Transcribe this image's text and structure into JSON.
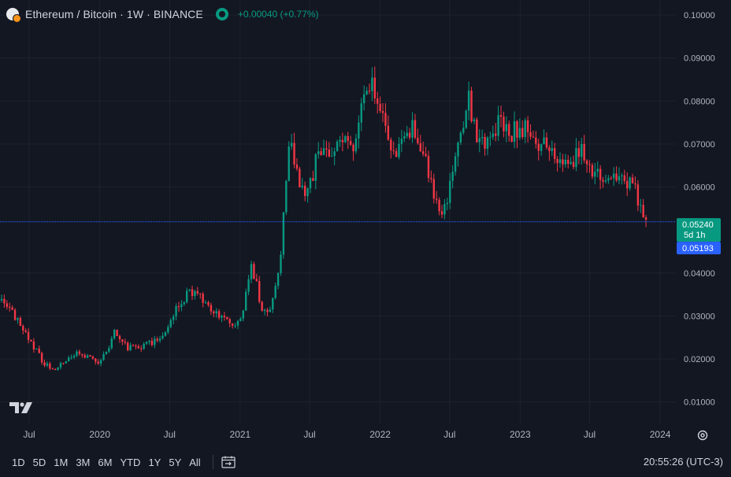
{
  "header": {
    "title": "Ethereum / Bitcoin · 1W · BINANCE",
    "change": "+0.00040 (+0.77%)"
  },
  "icons": {
    "symbol": "eth-btc-symbol-icon",
    "visibility": "eye-icon",
    "logo": "tradingview-logo",
    "settings": "gear-icon",
    "goto_date": "calendar-goto-icon"
  },
  "colors": {
    "background": "#131722",
    "up": "#089981",
    "down": "#f23645",
    "priceline": "#2962ff",
    "grid": "#1e222d",
    "text": "#d1d4dc"
  },
  "ranges": [
    "1D",
    "5D",
    "1M",
    "3M",
    "6M",
    "YTD",
    "1Y",
    "5Y",
    "All"
  ],
  "clock": "20:55:26 (UTC-3)",
  "chart_data": {
    "type": "candlestick",
    "interval": "1W",
    "y_ticks": [
      "0.10000",
      "0.09000",
      "0.08000",
      "0.07000",
      "0.06000",
      "0.04000",
      "0.03000",
      "0.02000",
      "0.01000"
    ],
    "x_ticks": [
      "Jul",
      "2020",
      "Jul",
      "2021",
      "Jul",
      "2022",
      "Jul",
      "2023",
      "Jul",
      "2024"
    ],
    "ylim": [
      0.005,
      0.1035
    ],
    "last_price": "0.05240",
    "countdown": "5d 1h",
    "line_price": "0.05193",
    "last_value": 0.0524,
    "line_value": 0.05193,
    "anchors": [
      [
        "2019-04-20",
        0.034
      ],
      [
        "2019-05-01",
        0.0325
      ],
      [
        "2019-06-01",
        0.029
      ],
      [
        "2019-07-10",
        0.023
      ],
      [
        "2019-08-10",
        0.019
      ],
      [
        "2019-09-01",
        0.0175
      ],
      [
        "2019-10-01",
        0.019
      ],
      [
        "2019-11-01",
        0.0215
      ],
      [
        "2019-12-01",
        0.0205
      ],
      [
        "2020-01-01",
        0.0185
      ],
      [
        "2020-02-10",
        0.0265
      ],
      [
        "2020-03-15",
        0.0225
      ],
      [
        "2020-04-15",
        0.0225
      ],
      [
        "2020-05-15",
        0.024
      ],
      [
        "2020-06-15",
        0.025
      ],
      [
        "2020-07-25",
        0.033
      ],
      [
        "2020-08-25",
        0.036
      ],
      [
        "2020-09-25",
        0.034
      ],
      [
        "2020-10-25",
        0.031
      ],
      [
        "2020-11-20",
        0.029
      ],
      [
        "2020-12-20",
        0.028
      ],
      [
        "2021-01-10",
        0.032
      ],
      [
        "2021-02-01",
        0.042
      ],
      [
        "2021-02-25",
        0.032
      ],
      [
        "2021-03-20",
        0.0305
      ],
      [
        "2021-04-15",
        0.042
      ],
      [
        "2021-05-10",
        0.072
      ],
      [
        "2021-05-25",
        0.064
      ],
      [
        "2021-06-15",
        0.058
      ],
      [
        "2021-07-10",
        0.062
      ],
      [
        "2021-07-25",
        0.07
      ],
      [
        "2021-08-25",
        0.066
      ],
      [
        "2021-09-20",
        0.071
      ],
      [
        "2021-10-20",
        0.069
      ],
      [
        "2021-11-20",
        0.08
      ],
      [
        "2021-12-10",
        0.085
      ],
      [
        "2022-01-01",
        0.078
      ],
      [
        "2022-01-25",
        0.069
      ],
      [
        "2022-02-20",
        0.068
      ],
      [
        "2022-03-20",
        0.074
      ],
      [
        "2022-04-15",
        0.07
      ],
      [
        "2022-05-15",
        0.061
      ],
      [
        "2022-06-10",
        0.053
      ],
      [
        "2022-06-25",
        0.057
      ],
      [
        "2022-07-20",
        0.07
      ],
      [
        "2022-08-20",
        0.08
      ],
      [
        "2022-09-10",
        0.072
      ],
      [
        "2022-10-01",
        0.068
      ],
      [
        "2022-10-20",
        0.072
      ],
      [
        "2022-11-10",
        0.076
      ],
      [
        "2022-12-10",
        0.073
      ],
      [
        "2023-01-10",
        0.074
      ],
      [
        "2023-02-10",
        0.069
      ],
      [
        "2023-03-10",
        0.07
      ],
      [
        "2023-04-10",
        0.064
      ],
      [
        "2023-05-10",
        0.066
      ],
      [
        "2023-06-10",
        0.068
      ],
      [
        "2023-07-01",
        0.064
      ],
      [
        "2023-08-01",
        0.0625
      ],
      [
        "2023-09-01",
        0.063
      ],
      [
        "2023-10-01",
        0.062
      ],
      [
        "2023-10-25",
        0.06
      ],
      [
        "2023-11-15",
        0.0545
      ],
      [
        "2023-11-25",
        0.0524
      ]
    ]
  }
}
